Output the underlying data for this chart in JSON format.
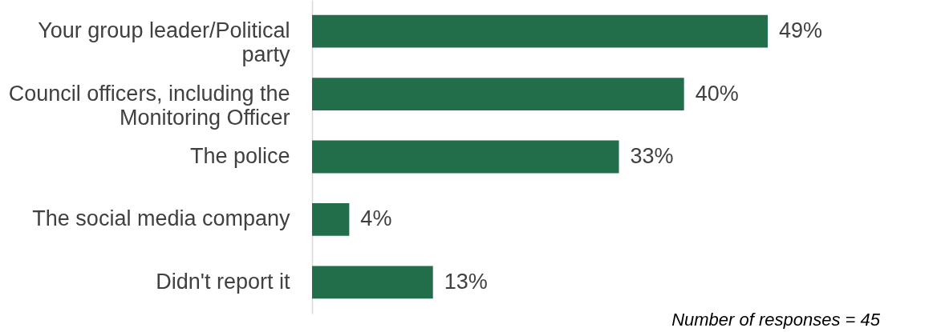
{
  "chart_data": {
    "type": "bar",
    "orientation": "horizontal",
    "categories": [
      "Your group leader/Political party",
      "Council officers, including the Monitoring Officer",
      "The police",
      "The social media company",
      "Didn't report it"
    ],
    "values": [
      49,
      40,
      33,
      4,
      13
    ],
    "value_labels": [
      "49%",
      "40%",
      "33%",
      "4%",
      "13%"
    ],
    "color": "#226e4b",
    "grid": false,
    "annotations": [
      "Number of responses = 45"
    ]
  }
}
